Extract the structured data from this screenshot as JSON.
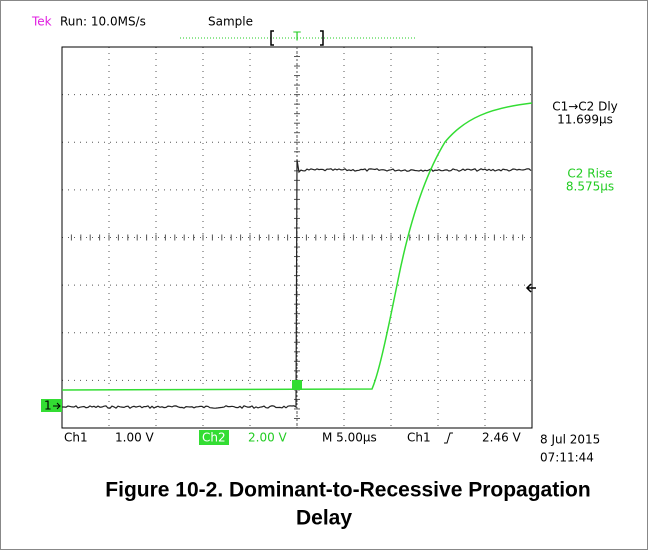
{
  "header": {
    "brand": "Tek",
    "status": "Run: 10.0MS/s",
    "mode": "Sample",
    "trigger": "T"
  },
  "readouts": [
    {
      "label": "C1→C2 Dly",
      "value": "11.699µs"
    },
    {
      "label": "C2 Rise",
      "value": "8.575µs"
    }
  ],
  "channel_marker": "1",
  "footer": {
    "ch1": "Ch1",
    "ch1_scale": "1.00 V",
    "ch2": "Ch2",
    "ch2_scale": "2.00 V",
    "timebase": "M 5.00µs",
    "trigger_source": "Ch1",
    "trigger_level": "2.46 V",
    "date": "8 Jul 2015",
    "time": "07:11:44"
  },
  "caption": [
    "Figure 10-2. Dominant-to-Recessive Propagation",
    "Delay"
  ]
}
